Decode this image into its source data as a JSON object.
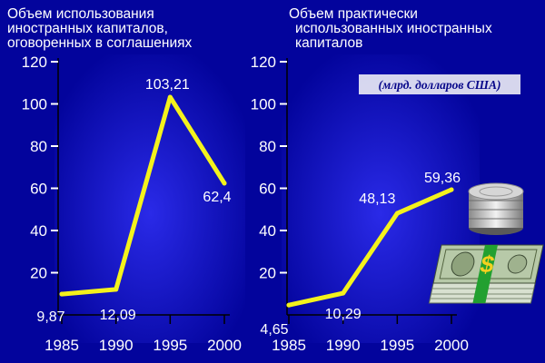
{
  "colors": {
    "background": "#03049c",
    "plot_area": "#1414c8",
    "line": "#f4f21c",
    "text": "#ffffff",
    "axis": "#000000",
    "unit_box": "#e8e8f4",
    "unit_text": "#07078a"
  },
  "unit_note": "(млрд. долларов США)",
  "decorations": [
    "coin-stack-icon",
    "cash-bundle-icon"
  ],
  "chart_data": [
    {
      "type": "line",
      "title_lines": [
        "Объем использования",
        "иностранных капиталов,",
        "оговоренных в соглашениях"
      ],
      "x": [
        1985,
        1990,
        1995,
        2000
      ],
      "x_tick_labels": [
        "1985",
        "1990",
        "1995",
        "2000"
      ],
      "y": [
        9.87,
        12.09,
        103.21,
        62.4
      ],
      "data_labels": [
        "9,87",
        "12,09",
        "103,21",
        "62,4"
      ],
      "y_ticks": [
        20,
        40,
        60,
        80,
        100,
        120
      ],
      "y_tick_labels": [
        "20",
        "40",
        "60",
        "80",
        "100",
        "120"
      ],
      "ylim": [
        0,
        120
      ],
      "grid": false
    },
    {
      "type": "line",
      "title_lines": [
        "Объем практически",
        "использованных иностранных",
        "капиталов"
      ],
      "x": [
        1985,
        1990,
        1995,
        2000
      ],
      "x_tick_labels": [
        "1985",
        "1990",
        "1995",
        "2000"
      ],
      "y": [
        4.65,
        10.29,
        48.13,
        59.36
      ],
      "data_labels": [
        "4,65",
        "10,29",
        "48,13",
        "59,36"
      ],
      "y_ticks": [
        20,
        40,
        60,
        80,
        100,
        120
      ],
      "y_tick_labels": [
        "20",
        "40",
        "60",
        "80",
        "100",
        "120"
      ],
      "ylim": [
        0,
        120
      ],
      "grid": false
    }
  ]
}
